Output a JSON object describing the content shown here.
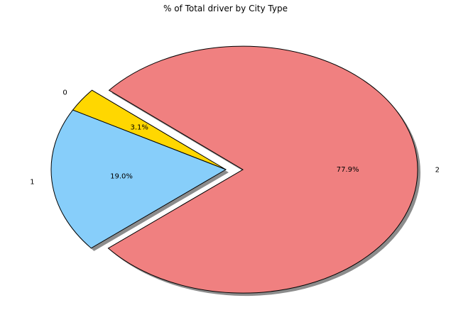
{
  "chart_data": {
    "type": "pie",
    "title": "% of Total driver by City Type",
    "labels": [
      "0",
      "1",
      "2"
    ],
    "values": [
      3.1,
      19.0,
      77.9
    ],
    "percent_labels": [
      "3.1%",
      "19.0%",
      "77.9%"
    ],
    "colors": [
      "#FFD700",
      "#87CEFA",
      "#F08080"
    ],
    "edge_color": "#000000",
    "shadow_color": "#8c8c8c",
    "shadow": true,
    "exploded_slice": "2",
    "start_angle_degrees": 140,
    "legend": false
  }
}
